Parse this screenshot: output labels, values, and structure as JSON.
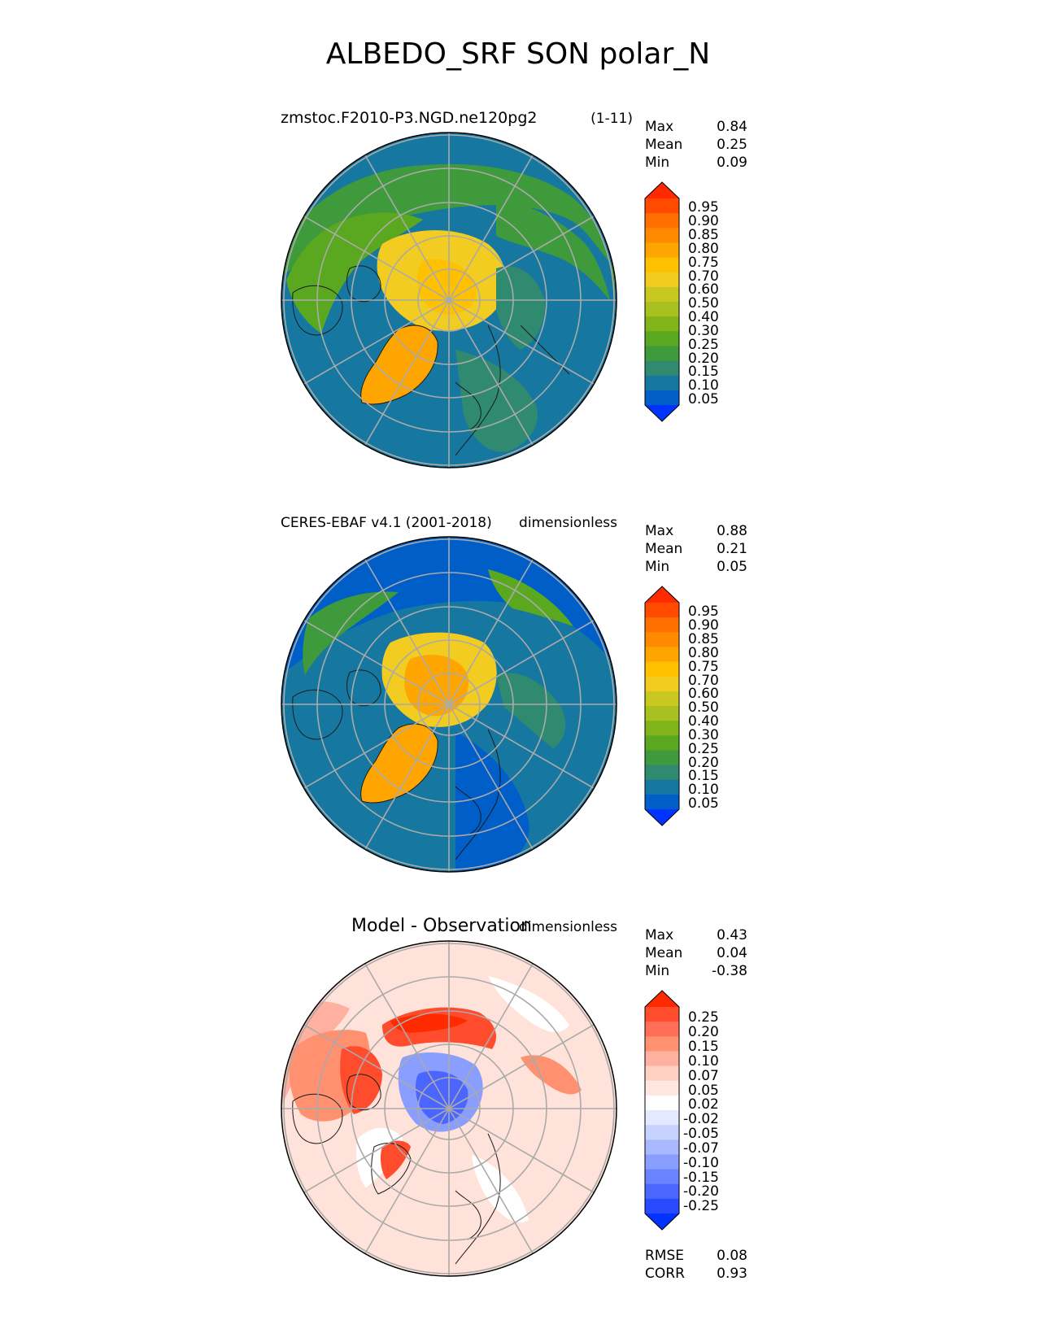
{
  "title": "ALBEDO_SRF SON polar_N",
  "panels": [
    {
      "label_left": "zmstoc.F2010-P3.NGD.ne120pg2",
      "label_right": "(1-11)",
      "stats": [
        [
          "Max",
          "0.84"
        ],
        [
          "Mean",
          "0.25"
        ],
        [
          "Min",
          "0.09"
        ]
      ],
      "colorbar_ticks": [
        "0.95",
        "0.90",
        "0.85",
        "0.80",
        "0.75",
        "0.70",
        "0.60",
        "0.50",
        "0.40",
        "0.30",
        "0.25",
        "0.20",
        "0.15",
        "0.10",
        "0.05"
      ]
    },
    {
      "label_left": "CERES-EBAF v4.1 (2001-2018)",
      "label_right": "dimensionless",
      "stats": [
        [
          "Max",
          "0.88"
        ],
        [
          "Mean",
          "0.21"
        ],
        [
          "Min",
          "0.05"
        ]
      ],
      "colorbar_ticks": [
        "0.95",
        "0.90",
        "0.85",
        "0.80",
        "0.75",
        "0.70",
        "0.60",
        "0.50",
        "0.40",
        "0.30",
        "0.25",
        "0.20",
        "0.15",
        "0.10",
        "0.05"
      ]
    },
    {
      "label_left": "Model - Observation",
      "label_right": "dimensionless",
      "stats": [
        [
          "Max",
          "0.43"
        ],
        [
          "Mean",
          "0.04"
        ],
        [
          "Min",
          "-0.38"
        ]
      ],
      "colorbar_ticks": [
        "0.25",
        "0.20",
        "0.15",
        "0.10",
        "0.07",
        "0.05",
        "0.02",
        "-0.02",
        "-0.05",
        "-0.07",
        "-0.10",
        "-0.15",
        "-0.20",
        "-0.25"
      ],
      "metrics": [
        [
          "RMSE",
          "0.08"
        ],
        [
          "CORR",
          "0.93"
        ]
      ]
    }
  ],
  "colors": {
    "abs_scale": [
      "#ff2a00",
      "#ff4a00",
      "#ff6f00",
      "#ff8a00",
      "#ffa500",
      "#ffc000",
      "#f2cc20",
      "#c8c820",
      "#a8c020",
      "#80b418",
      "#5aa820",
      "#3f9a3c",
      "#2f8a70",
      "#1678a0",
      "#005ec8",
      "#0033ff"
    ],
    "diff_scale": [
      "#ff2a00",
      "#ff4c2c",
      "#ff6e56",
      "#ff9070",
      "#ffb0a0",
      "#ffd0c4",
      "#ffe6de",
      "#ffffff",
      "#e4e9ff",
      "#c8d2ff",
      "#aab8ff",
      "#8a9eff",
      "#6a83ff",
      "#4a66ff",
      "#2a4aff",
      "#0033ff"
    ]
  },
  "chart_data": [
    {
      "type": "heatmap",
      "projection": "north polar stereographic",
      "title": "zmstoc.F2010-P3.NGD.ne120pg2",
      "stats": {
        "max": 0.84,
        "mean": 0.25,
        "min": 0.09
      },
      "colorbar_levels": [
        0.05,
        0.1,
        0.15,
        0.2,
        0.25,
        0.3,
        0.4,
        0.5,
        0.6,
        0.7,
        0.75,
        0.8,
        0.85,
        0.9,
        0.95
      ],
      "colorbar_extend": "both"
    },
    {
      "type": "heatmap",
      "projection": "north polar stereographic",
      "title": "CERES-EBAF v4.1 (2001-2018)",
      "units": "dimensionless",
      "stats": {
        "max": 0.88,
        "mean": 0.21,
        "min": 0.05
      },
      "colorbar_levels": [
        0.05,
        0.1,
        0.15,
        0.2,
        0.25,
        0.3,
        0.4,
        0.5,
        0.6,
        0.7,
        0.75,
        0.8,
        0.85,
        0.9,
        0.95
      ],
      "colorbar_extend": "both"
    },
    {
      "type": "heatmap",
      "projection": "north polar stereographic",
      "title": "Model - Observation",
      "units": "dimensionless",
      "stats": {
        "max": 0.43,
        "mean": 0.04,
        "min": -0.38,
        "rmse": 0.08,
        "corr": 0.93
      },
      "colorbar_levels": [
        -0.25,
        -0.2,
        -0.15,
        -0.1,
        -0.07,
        -0.05,
        -0.02,
        0.02,
        0.05,
        0.07,
        0.1,
        0.15,
        0.2,
        0.25
      ],
      "colorbar_extend": "both"
    }
  ]
}
